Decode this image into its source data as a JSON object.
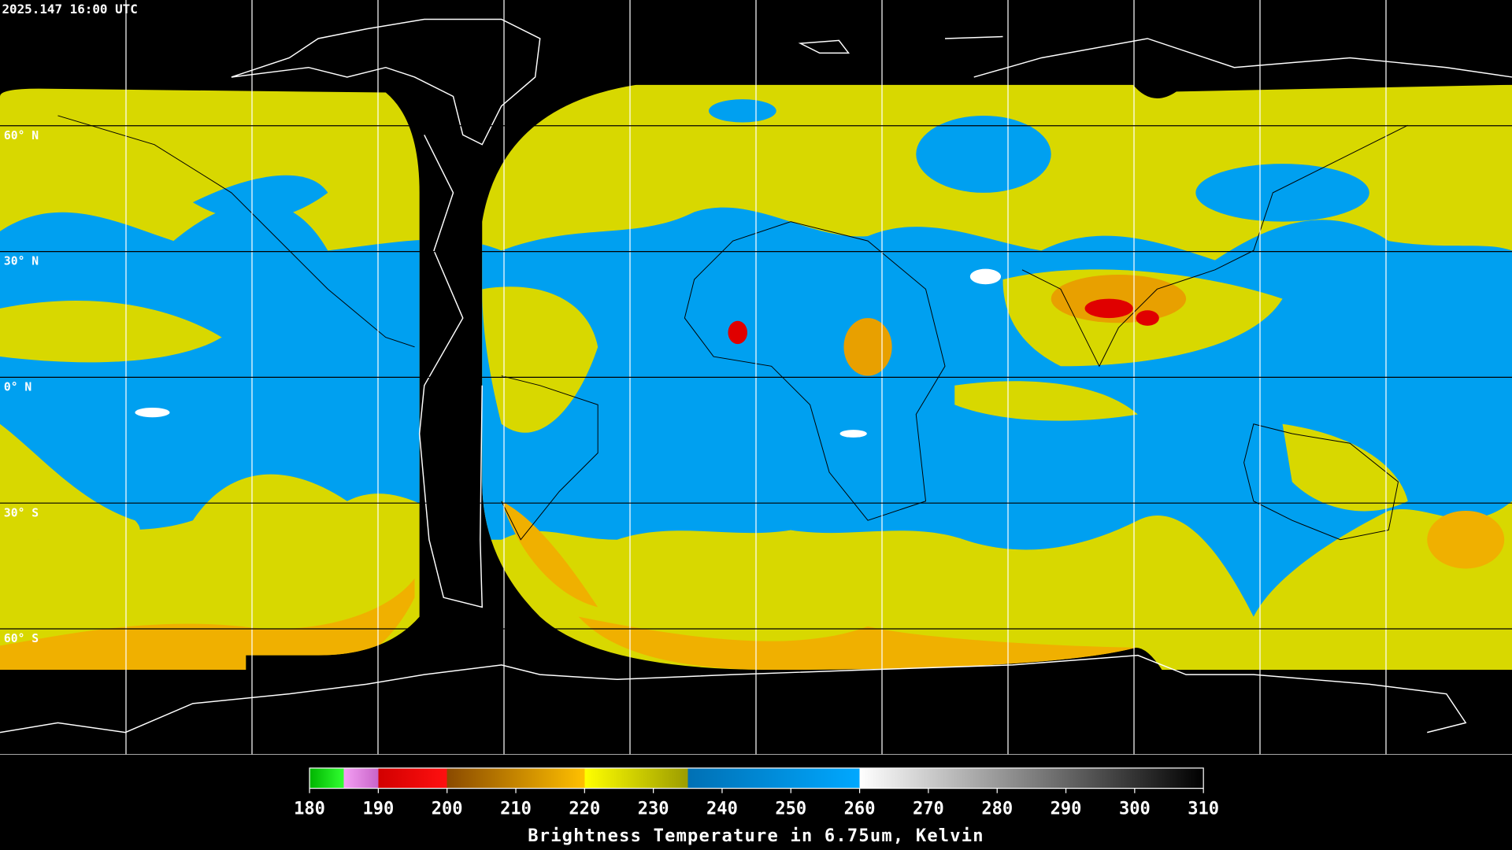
{
  "header": {
    "title": "2025.147 16:00 UTC"
  },
  "map": {
    "lat_labels": [
      {
        "value": 60,
        "label": "60° N"
      },
      {
        "value": 30,
        "label": "30° N"
      },
      {
        "value": 0,
        "label": "0° N"
      },
      {
        "value": -30,
        "label": "30° S"
      },
      {
        "value": -60,
        "label": "60° S"
      }
    ]
  },
  "colorbar": {
    "caption": "Brightness Temperature in 6.75um, Kelvin",
    "range": [
      180,
      310
    ],
    "ticks": [
      180,
      190,
      200,
      210,
      220,
      230,
      240,
      250,
      260,
      270,
      280,
      290,
      300,
      310
    ],
    "stops": [
      {
        "value": 180,
        "color": "#00b400"
      },
      {
        "value": 185,
        "color": "#30ff30"
      },
      {
        "value": 185,
        "color": "#f4a0f4"
      },
      {
        "value": 190,
        "color": "#c864c8"
      },
      {
        "value": 190,
        "color": "#d20000"
      },
      {
        "value": 200,
        "color": "#ff1010"
      },
      {
        "value": 200,
        "color": "#8a4a00"
      },
      {
        "value": 220,
        "color": "#ffc000"
      },
      {
        "value": 220,
        "color": "#ffff00"
      },
      {
        "value": 235,
        "color": "#9c9c00"
      },
      {
        "value": 235,
        "color": "#0070b4"
      },
      {
        "value": 260,
        "color": "#00a8ff"
      },
      {
        "value": 260,
        "color": "#ffffff"
      },
      {
        "value": 310,
        "color": "#000000"
      }
    ]
  }
}
